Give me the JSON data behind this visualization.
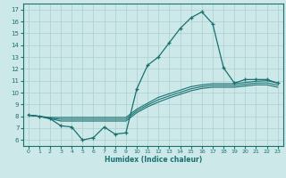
{
  "title": "",
  "xlabel": "Humidex (Indice chaleur)",
  "xlim": [
    -0.5,
    23.5
  ],
  "ylim": [
    5.5,
    17.5
  ],
  "yticks": [
    6,
    7,
    8,
    9,
    10,
    11,
    12,
    13,
    14,
    15,
    16,
    17
  ],
  "xticks": [
    0,
    1,
    2,
    3,
    4,
    5,
    6,
    7,
    8,
    9,
    10,
    11,
    12,
    13,
    14,
    15,
    16,
    17,
    18,
    19,
    20,
    21,
    22,
    23
  ],
  "bg_color": "#cce8e8",
  "line_color": "#1a7070",
  "grid_color": "#aacfcf",
  "line1_x": [
    0,
    1,
    2,
    3,
    4,
    5,
    6,
    7,
    8,
    9,
    10,
    11,
    12,
    13,
    14,
    15,
    16,
    17,
    18,
    19,
    20,
    21,
    22,
    23
  ],
  "line1_y": [
    8.1,
    8.0,
    7.8,
    7.2,
    7.1,
    6.0,
    6.2,
    7.1,
    6.5,
    6.6,
    10.3,
    12.3,
    13.0,
    14.2,
    15.4,
    16.3,
    16.8,
    15.8,
    12.1,
    10.8,
    11.1,
    11.1,
    11.1,
    10.8
  ],
  "line2_x": [
    0,
    1,
    2,
    3,
    4,
    5,
    6,
    7,
    8,
    9,
    10,
    11,
    12,
    13,
    14,
    15,
    16,
    17,
    18,
    19,
    20,
    21,
    22,
    23
  ],
  "line2_y": [
    8.1,
    8.0,
    7.9,
    7.9,
    7.9,
    7.9,
    7.9,
    7.9,
    7.9,
    7.9,
    8.6,
    9.1,
    9.6,
    9.9,
    10.2,
    10.5,
    10.65,
    10.75,
    10.75,
    10.75,
    10.85,
    10.95,
    11.0,
    10.8
  ],
  "line3_x": [
    0,
    1,
    2,
    3,
    4,
    5,
    6,
    7,
    8,
    9,
    10,
    11,
    12,
    13,
    14,
    15,
    16,
    17,
    18,
    19,
    20,
    21,
    22,
    23
  ],
  "line3_y": [
    8.1,
    8.0,
    7.8,
    7.6,
    7.6,
    7.6,
    7.6,
    7.6,
    7.6,
    7.6,
    8.3,
    8.8,
    9.2,
    9.55,
    9.85,
    10.15,
    10.35,
    10.45,
    10.45,
    10.45,
    10.55,
    10.65,
    10.65,
    10.45
  ],
  "line4_x": [
    0,
    1,
    2,
    3,
    4,
    5,
    6,
    7,
    8,
    9,
    10,
    11,
    12,
    13,
    14,
    15,
    16,
    17,
    18,
    19,
    20,
    21,
    22,
    23
  ],
  "line4_y": [
    8.1,
    8.0,
    7.85,
    7.75,
    7.75,
    7.75,
    7.75,
    7.75,
    7.75,
    7.75,
    8.45,
    8.95,
    9.4,
    9.72,
    10.02,
    10.32,
    10.5,
    10.6,
    10.6,
    10.6,
    10.7,
    10.8,
    10.82,
    10.62
  ]
}
